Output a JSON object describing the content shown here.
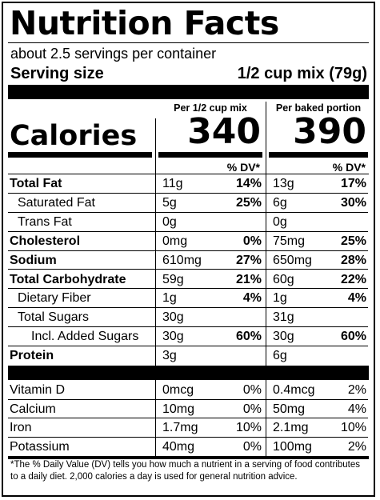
{
  "title": "Nutrition Facts",
  "servings_per_container": "about 2.5 servings per container",
  "serving_size": {
    "label": "Serving size",
    "value": "1/2 cup mix (79g)"
  },
  "columns": [
    {
      "header": "Per 1/2 cup mix",
      "calories": "340",
      "dv_header": "% DV*"
    },
    {
      "header": "Per baked portion",
      "calories": "390",
      "dv_header": "% DV*"
    }
  ],
  "calories_label": "Calories",
  "nutrients": [
    {
      "name": "Total Fat",
      "bold": true,
      "indent": 0,
      "col1": {
        "amount": "11g",
        "dv": "14%"
      },
      "col2": {
        "amount": "13g",
        "dv": "17%"
      }
    },
    {
      "name": "Saturated Fat",
      "bold": false,
      "indent": 1,
      "col1": {
        "amount": "5g",
        "dv": "25%"
      },
      "col2": {
        "amount": "6g",
        "dv": "30%"
      }
    },
    {
      "name": "Trans Fat",
      "bold": false,
      "indent": 1,
      "col1": {
        "amount": "0g",
        "dv": ""
      },
      "col2": {
        "amount": "0g",
        "dv": ""
      }
    },
    {
      "name": "Cholesterol",
      "bold": true,
      "indent": 0,
      "col1": {
        "amount": "0mg",
        "dv": "0%"
      },
      "col2": {
        "amount": "75mg",
        "dv": "25%"
      }
    },
    {
      "name": "Sodium",
      "bold": true,
      "indent": 0,
      "col1": {
        "amount": "610mg",
        "dv": "27%"
      },
      "col2": {
        "amount": "650mg",
        "dv": "28%"
      }
    },
    {
      "name": "Total Carbohydrate",
      "bold": true,
      "indent": 0,
      "col1": {
        "amount": "59g",
        "dv": "21%"
      },
      "col2": {
        "amount": "60g",
        "dv": "22%"
      }
    },
    {
      "name": "Dietary Fiber",
      "bold": false,
      "indent": 1,
      "col1": {
        "amount": "1g",
        "dv": "4%"
      },
      "col2": {
        "amount": "1g",
        "dv": "4%"
      }
    },
    {
      "name": "Total Sugars",
      "bold": false,
      "indent": 1,
      "col1": {
        "amount": "30g",
        "dv": ""
      },
      "col2": {
        "amount": "31g",
        "dv": ""
      }
    },
    {
      "name": "Incl. Added Sugars",
      "bold": false,
      "indent": 2,
      "col1": {
        "amount": "30g",
        "dv": "60%"
      },
      "col2": {
        "amount": "30g",
        "dv": "60%"
      }
    },
    {
      "name": "Protein",
      "bold": true,
      "indent": 0,
      "col1": {
        "amount": "3g",
        "dv": ""
      },
      "col2": {
        "amount": "6g",
        "dv": ""
      }
    }
  ],
  "vitamins": [
    {
      "name": "Vitamin D",
      "col1": {
        "amount": "0mcg",
        "dv": "0%"
      },
      "col2": {
        "amount": "0.4mcg",
        "dv": "2%"
      }
    },
    {
      "name": "Calcium",
      "col1": {
        "amount": "10mg",
        "dv": "0%"
      },
      "col2": {
        "amount": "50mg",
        "dv": "4%"
      }
    },
    {
      "name": "Iron",
      "col1": {
        "amount": "1.7mg",
        "dv": "10%"
      },
      "col2": {
        "amount": "2.1mg",
        "dv": "10%"
      }
    },
    {
      "name": "Potassium",
      "col1": {
        "amount": "40mg",
        "dv": "0%"
      },
      "col2": {
        "amount": "100mg",
        "dv": "2%"
      }
    }
  ],
  "footnote": "*The % Daily Value (DV) tells you how much a nutrient in a serving of food contributes to a daily diet.  2,000 calories a day is used for general nutrition advice."
}
